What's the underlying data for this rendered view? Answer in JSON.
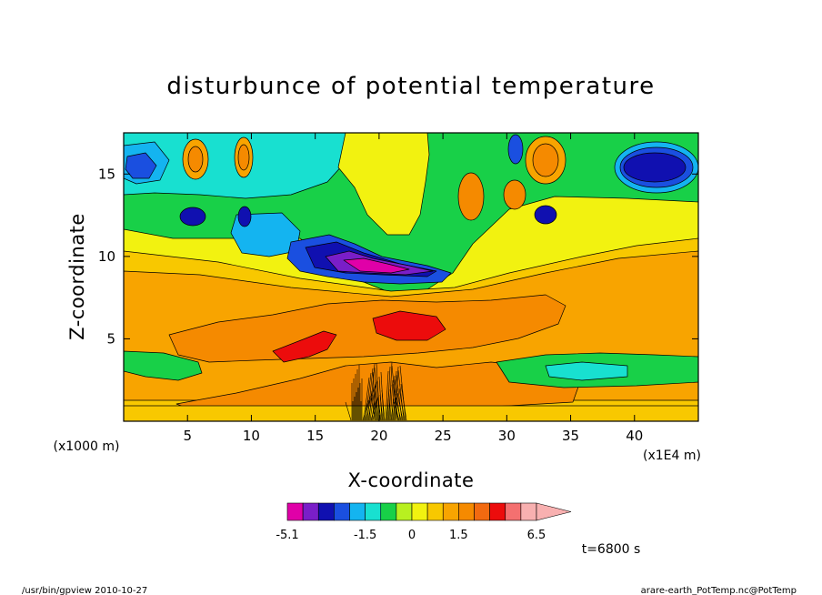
{
  "chart_data": {
    "type": "heatmap",
    "title": "disturbunce of potential temperature",
    "xlabel": "X-coordinate",
    "ylabel": "Z-coordinate",
    "x_unit": "(x1E4 m)",
    "y_unit": "(x1000 m)",
    "xlim": [
      0,
      45
    ],
    "ylim": [
      0,
      17.5
    ],
    "x_ticks": [
      5,
      10,
      15,
      20,
      25,
      30,
      35,
      40
    ],
    "y_ticks": [
      5,
      10,
      15
    ],
    "x_tick_labels": [
      "5",
      "10",
      "15",
      "20",
      "25",
      "30",
      "35",
      "40"
    ],
    "y_tick_labels": [
      "5",
      "10",
      "15"
    ],
    "colorbar": {
      "levels": [
        -5.1,
        -4.1,
        -3.1,
        -2.6,
        -2.1,
        -1.5,
        -1.0,
        -0.5,
        0,
        0.5,
        1.0,
        1.5,
        2.0,
        3.0,
        4.0,
        5.0,
        6.5
      ],
      "colors": [
        "#e000a8",
        "#7a1ec8",
        "#1010b0",
        "#1a4fe0",
        "#14b4f0",
        "#18e0d0",
        "#18d048",
        "#b8f020",
        "#f2f210",
        "#f8c800",
        "#f8a400",
        "#f58a00",
        "#f26a10",
        "#ec0c0c",
        "#f47070",
        "#f8b0b0"
      ],
      "tick_labels": [
        "-5.1",
        "-1.5",
        "0",
        "1.5",
        "6.5"
      ],
      "extend": "max"
    },
    "annotation": "t=6800 s"
  },
  "footer": {
    "left": "/usr/bin/gpview  2010-10-27",
    "right": "arare-earth_PotTemp.nc@PotTemp"
  }
}
